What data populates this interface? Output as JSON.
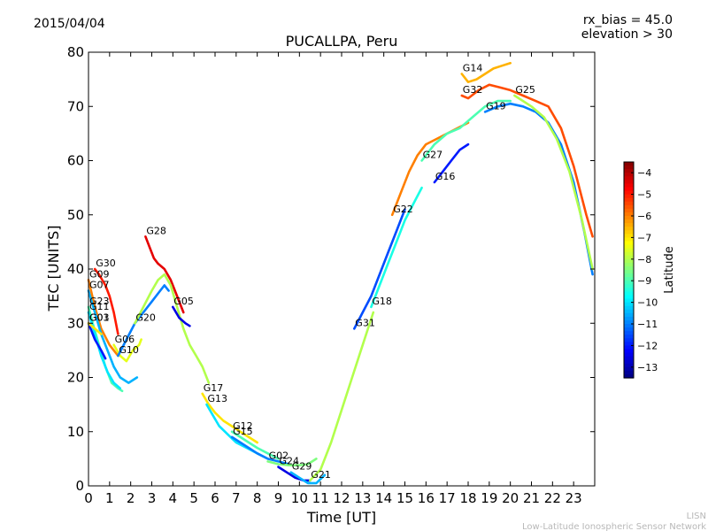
{
  "header": {
    "date": "2015/04/04",
    "rx_bias": "rx_bias = 45.0",
    "elevation": "elevation > 30"
  },
  "footer": {
    "line1": "LISN",
    "line2": "Low-Latitude Ionospheric Sensor Network"
  },
  "colorbar": {
    "label": "Latitude",
    "range": [
      -13.5,
      -3.5
    ],
    "ticks": [
      "-4",
      "-5",
      "-6",
      "-7",
      "-8",
      "-9",
      "-10",
      "-11",
      "-12",
      "-13"
    ],
    "colors": [
      "#00007f",
      "#0000ff",
      "#007fff",
      "#00ffff",
      "#7fff7f",
      "#ffff00",
      "#ff7f00",
      "#ff0000",
      "#7f0000"
    ],
    "palette_note": "jet"
  },
  "chart_data": {
    "type": "line",
    "title": "PUCALLPA, Peru",
    "xlabel": "Time [UT]",
    "ylabel": "TEC [UNITS]",
    "xlim": [
      0,
      24
    ],
    "ylim": [
      0,
      80
    ],
    "grid": false,
    "x_ticks": [
      "0",
      "1",
      "2",
      "3",
      "4",
      "5",
      "6",
      "7",
      "8",
      "9",
      "10",
      "11",
      "12",
      "13",
      "14",
      "15",
      "16",
      "17",
      "18",
      "19",
      "20",
      "21",
      "22",
      "23"
    ],
    "y_ticks": [
      "0",
      "10",
      "20",
      "30",
      "40",
      "50",
      "60",
      "70",
      "80"
    ],
    "color_by": "latitude",
    "series": [
      {
        "name": "G30",
        "lat": -5.0,
        "x": [
          0.3,
          0.5,
          0.8,
          1.0,
          1.2,
          1.4
        ],
        "y": [
          40,
          39,
          37,
          35,
          32,
          28
        ]
      },
      {
        "name": "G09",
        "lat": -6.0,
        "x": [
          0.0,
          0.3,
          0.6,
          1.0,
          1.4
        ],
        "y": [
          38,
          33,
          29,
          26,
          24
        ]
      },
      {
        "name": "G07",
        "lat": -10.5,
        "x": [
          0.0,
          0.3,
          0.6,
          0.9,
          1.2,
          1.5,
          1.9,
          2.3
        ],
        "y": [
          36,
          32,
          28,
          25,
          22,
          20,
          19,
          20
        ]
      },
      {
        "name": "G23",
        "lat": -9.0,
        "x": [
          0.0,
          0.2,
          0.5,
          0.8,
          1.1,
          1.4,
          1.6
        ],
        "y": [
          33,
          30,
          26,
          22,
          19,
          18,
          17.5
        ]
      },
      {
        "name": "G11",
        "lat": -10.0,
        "x": [
          0.0,
          0.3,
          0.6,
          0.9,
          1.2,
          1.5
        ],
        "y": [
          32,
          28,
          24,
          21,
          19,
          18
        ]
      },
      {
        "name": "G03",
        "lat": -12.0,
        "x": [
          0.0,
          0.3,
          0.6,
          0.8
        ],
        "y": [
          30,
          27,
          25,
          23.5
        ]
      },
      {
        "name": "G01",
        "lat": -7.0,
        "x": [
          0.0,
          0.3,
          0.6
        ],
        "y": [
          30,
          29,
          28
        ]
      },
      {
        "name": "G06",
        "lat": -7.5,
        "x": [
          1.2,
          1.5,
          1.8,
          2.1,
          2.4,
          2.5
        ],
        "y": [
          26,
          24,
          23,
          25,
          26,
          27
        ]
      },
      {
        "name": "G10",
        "lat": -11.0,
        "x": [
          1.4,
          1.8,
          2.2,
          2.6,
          3.0,
          3.4,
          3.6,
          3.8
        ],
        "y": [
          24,
          27,
          30,
          32,
          34,
          36,
          37,
          36
        ]
      },
      {
        "name": "G28",
        "lat": -4.5,
        "x": [
          2.7,
          2.9,
          3.1,
          3.3,
          3.6,
          3.9,
          4.2,
          4.5
        ],
        "y": [
          46,
          44,
          42,
          41,
          40,
          38,
          35,
          32
        ]
      },
      {
        "name": "G20",
        "lat": -8.0,
        "x": [
          2.2,
          2.6,
          3.0,
          3.3,
          3.6,
          3.9,
          4.2,
          4.5,
          4.8,
          5.1,
          5.4,
          5.7
        ],
        "y": [
          30,
          33,
          36,
          38,
          39,
          37,
          33,
          29,
          26,
          24,
          22,
          19
        ]
      },
      {
        "name": "G05",
        "lat": -12.5,
        "x": [
          4.0,
          4.3,
          4.6,
          4.8
        ],
        "y": [
          33,
          31,
          30,
          29.5
        ]
      },
      {
        "name": "G17",
        "lat": -7.0,
        "x": [
          5.4,
          5.7,
          6.0,
          6.4,
          6.8,
          7.2,
          7.6,
          8.0
        ],
        "y": [
          17,
          15,
          13.5,
          12,
          11,
          10,
          9,
          8
        ]
      },
      {
        "name": "G13",
        "lat": -10.0,
        "x": [
          5.6,
          5.9,
          6.2,
          6.6,
          7.0,
          7.5,
          8.0,
          8.5
        ],
        "y": [
          15,
          13,
          11,
          9.5,
          8,
          7,
          6,
          5
        ]
      },
      {
        "name": "G12",
        "lat": -9.0,
        "x": [
          6.8,
          7.2,
          7.6,
          8.0,
          8.5,
          9.0
        ],
        "y": [
          10,
          9,
          8,
          7,
          6,
          5
        ]
      },
      {
        "name": "G15",
        "lat": -11.0,
        "x": [
          6.8,
          7.2,
          7.6,
          8.0,
          8.5,
          9.0,
          9.5
        ],
        "y": [
          9,
          8,
          7,
          6,
          5,
          4.5,
          4
        ]
      },
      {
        "name": "G02",
        "lat": -8.5,
        "x": [
          8.5,
          9.0,
          9.5,
          10.0,
          10.4,
          10.8
        ],
        "y": [
          4.5,
          4,
          3.8,
          3.8,
          4,
          5
        ]
      },
      {
        "name": "G24",
        "lat": -12.5,
        "x": [
          9.0,
          9.4,
          9.8,
          10.2,
          10.5
        ],
        "y": [
          3.5,
          2.5,
          1.5,
          1,
          1
        ]
      },
      {
        "name": "G29",
        "lat": -10.5,
        "x": [
          9.6,
          10.0,
          10.4,
          10.8,
          11.2
        ],
        "y": [
          2.5,
          1.5,
          0.5,
          0.5,
          2
        ]
      },
      {
        "name": "G21",
        "lat": -8.0,
        "x": [
          10.5,
          11.0,
          11.5,
          12.0,
          12.5,
          13.0,
          13.5
        ],
        "y": [
          1,
          3,
          8,
          14,
          20,
          26,
          32
        ]
      },
      {
        "name": "G31",
        "lat": -11.5,
        "x": [
          12.6,
          13.0,
          13.4,
          13.8,
          14.2,
          14.6,
          15.0
        ],
        "y": [
          29,
          32,
          35,
          39,
          43,
          47,
          51
        ]
      },
      {
        "name": "G18",
        "lat": -9.5,
        "x": [
          13.4,
          13.8,
          14.2,
          14.6,
          15.0,
          15.4,
          15.8
        ],
        "y": [
          33,
          37,
          41,
          45,
          49,
          52,
          55
        ]
      },
      {
        "name": "G22",
        "lat": -6.0,
        "x": [
          14.4,
          14.8,
          15.2,
          15.6,
          16.0,
          16.5,
          17.0,
          17.5,
          18.0
        ],
        "y": [
          50,
          54,
          58,
          61,
          63,
          64,
          65,
          66,
          67
        ]
      },
      {
        "name": "G16",
        "lat": -12.0,
        "x": [
          16.4,
          16.8,
          17.2,
          17.6,
          18.0
        ],
        "y": [
          56,
          58,
          60,
          62,
          63
        ]
      },
      {
        "name": "G27",
        "lat": -9.0,
        "x": [
          15.8,
          16.4,
          17.0,
          17.6,
          18.2,
          18.8,
          19.4,
          20.0
        ],
        "y": [
          60,
          63,
          65,
          66,
          68,
          70,
          71,
          71
        ]
      },
      {
        "name": "G19",
        "lat": -11.0,
        "x": [
          18.8,
          19.4,
          20.0,
          20.6,
          21.2,
          21.8,
          22.4,
          23.0,
          23.5,
          23.9
        ],
        "y": [
          69,
          70,
          70.5,
          70,
          69,
          67,
          63,
          56,
          47,
          39
        ]
      },
      {
        "name": "G32",
        "lat": -5.5,
        "x": [
          17.7,
          18.0,
          18.5,
          19.0,
          19.5,
          20.0,
          20.6,
          21.2,
          21.8,
          22.4,
          23.0,
          23.6,
          23.9
        ],
        "y": [
          72,
          71.5,
          73,
          74,
          73.5,
          73,
          72,
          71,
          70,
          66,
          59,
          50,
          46
        ]
      },
      {
        "name": "G14",
        "lat": -6.5,
        "x": [
          17.7,
          18.0,
          18.4,
          18.8,
          19.2,
          19.6,
          20.0
        ],
        "y": [
          76,
          74.5,
          75,
          76,
          77,
          77.5,
          78
        ]
      },
      {
        "name": "G25",
        "lat": -8.0,
        "x": [
          20.2,
          20.6,
          21.0,
          21.6,
          22.2,
          22.8,
          23.4,
          23.9
        ],
        "y": [
          72,
          71,
          70,
          68,
          64,
          58,
          49,
          40
        ]
      }
    ]
  }
}
